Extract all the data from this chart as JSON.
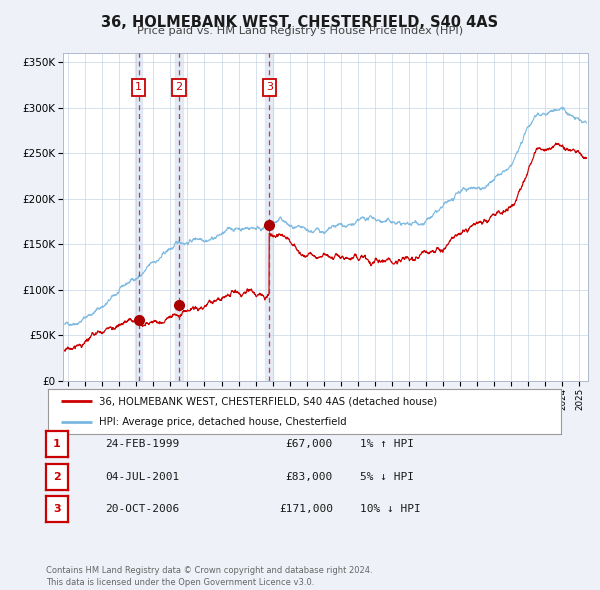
{
  "title": "36, HOLMEBANK WEST, CHESTERFIELD, S40 4AS",
  "subtitle": "Price paid vs. HM Land Registry's House Price Index (HPI)",
  "bg_color": "#eef2f8",
  "plot_bg_color": "#ffffff",
  "hpi_color": "#7ab8e0",
  "price_color": "#cc0000",
  "marker_color": "#aa0000",
  "vline_color": "#cc2222",
  "shade_color": "#dde8f5",
  "transactions": [
    {
      "date": 1999.14,
      "price": 67000,
      "label": "1"
    },
    {
      "date": 2001.5,
      "price": 83000,
      "label": "2"
    },
    {
      "date": 2006.8,
      "price": 171000,
      "label": "3"
    }
  ],
  "transaction_table": [
    {
      "num": "1",
      "date": "24-FEB-1999",
      "price": "£67,000",
      "hpi": "1% ↑ HPI"
    },
    {
      "num": "2",
      "date": "04-JUL-2001",
      "price": "£83,000",
      "hpi": "5% ↓ HPI"
    },
    {
      "num": "3",
      "date": "20-OCT-2006",
      "price": "£171,000",
      "hpi": "10% ↓ HPI"
    }
  ],
  "ylabel_ticks": [
    0,
    50000,
    100000,
    150000,
    200000,
    250000,
    300000,
    350000
  ],
  "ylabel_labels": [
    "£0",
    "£50K",
    "£100K",
    "£150K",
    "£200K",
    "£250K",
    "£300K",
    "£350K"
  ],
  "xmin": 1994.7,
  "xmax": 2025.5,
  "ymin": 0,
  "ymax": 360000,
  "legend_label_price": "36, HOLMEBANK WEST, CHESTERFIELD, S40 4AS (detached house)",
  "legend_label_hpi": "HPI: Average price, detached house, Chesterfield",
  "footer": "Contains HM Land Registry data © Crown copyright and database right 2024.\nThis data is licensed under the Open Government Licence v3.0."
}
